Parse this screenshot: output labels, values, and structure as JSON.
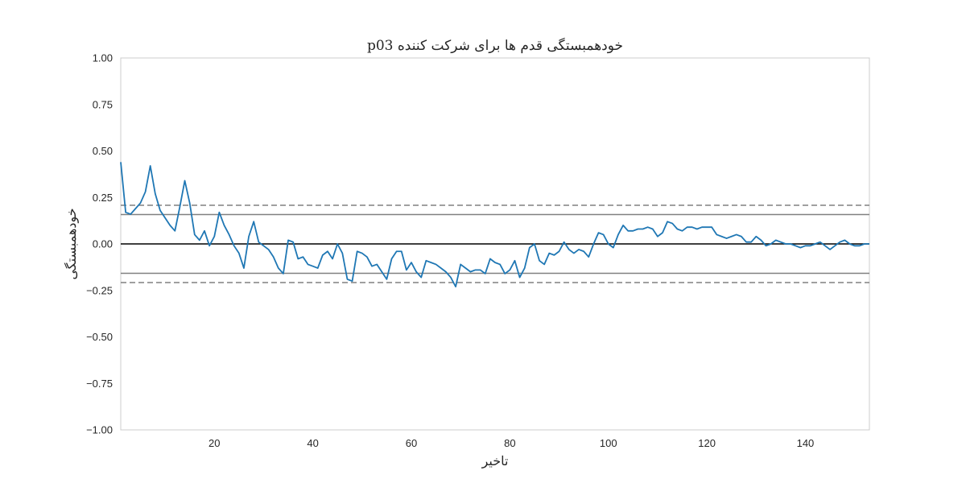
{
  "chart_data": {
    "type": "line",
    "title": "خودهمبستگی قدم ها برای شرکت کننده p03",
    "xlabel": "تاخیر",
    "ylabel": "خودهمبستگی",
    "xlim": [
      1,
      153
    ],
    "ylim": [
      -1.0,
      1.0
    ],
    "x_ticks": [
      20,
      40,
      60,
      80,
      100,
      120,
      140
    ],
    "y_ticks": [
      -1.0,
      -0.75,
      -0.5,
      -0.25,
      0.0,
      0.25,
      0.5,
      0.75,
      1.0
    ],
    "y_tick_labels": [
      "−1.00",
      "−0.75",
      "−0.50",
      "−0.25",
      "0.00",
      "0.25",
      "0.50",
      "0.75",
      "1.00"
    ],
    "x_tick_labels": [
      "20",
      "40",
      "60",
      "80",
      "100",
      "120",
      "140"
    ],
    "grid": false,
    "confidence_bands": {
      "solid": [
        0.158,
        -0.158
      ],
      "dashed": [
        0.208,
        -0.208
      ]
    },
    "zero_line": 0.0,
    "colors": {
      "series": "#1f77b4",
      "band_line": "#808080",
      "zero_line": "#000000",
      "frame": "#cccccc"
    },
    "series": [
      {
        "x": [
          1,
          2,
          3,
          4,
          5,
          6,
          7,
          8,
          9,
          10,
          11,
          12,
          13,
          14,
          15,
          16,
          17,
          18,
          19,
          20,
          21,
          22,
          23,
          24,
          25,
          26,
          27,
          28,
          29,
          30,
          31,
          32,
          33,
          34,
          35,
          36,
          37,
          38,
          39,
          40,
          41,
          42,
          43,
          44,
          45,
          46,
          47,
          48,
          49,
          50,
          51,
          52,
          53,
          54,
          55,
          56,
          57,
          58,
          59,
          60,
          61,
          62,
          63,
          64,
          65,
          66,
          67,
          68,
          69,
          70,
          71,
          72,
          73,
          74,
          75,
          76,
          77,
          78,
          79,
          80,
          81,
          82,
          83,
          84,
          85,
          86,
          87,
          88,
          89,
          90,
          91,
          92,
          93,
          94,
          95,
          96,
          97,
          98,
          99,
          100,
          101,
          102,
          103,
          104,
          105,
          106,
          107,
          108,
          109,
          110,
          111,
          112,
          113,
          114,
          115,
          116,
          117,
          118,
          119,
          120,
          121,
          122,
          123,
          124,
          125,
          126,
          127,
          128,
          129,
          130,
          131,
          132,
          133,
          134,
          135,
          136,
          137,
          138,
          139,
          140,
          141,
          142,
          143,
          144,
          145,
          146,
          147,
          148,
          149,
          150,
          151,
          152,
          153
        ],
        "values": [
          0.44,
          0.17,
          0.16,
          0.19,
          0.22,
          0.28,
          0.42,
          0.27,
          0.18,
          0.14,
          0.1,
          0.07,
          0.2,
          0.34,
          0.22,
          0.05,
          0.02,
          0.07,
          -0.01,
          0.04,
          0.17,
          0.1,
          0.05,
          -0.01,
          -0.05,
          -0.13,
          0.04,
          0.12,
          0.01,
          -0.01,
          -0.03,
          -0.07,
          -0.13,
          -0.16,
          0.02,
          0.01,
          -0.08,
          -0.07,
          -0.11,
          -0.12,
          -0.13,
          -0.06,
          -0.04,
          -0.08,
          0.0,
          -0.05,
          -0.19,
          -0.2,
          -0.04,
          -0.05,
          -0.07,
          -0.12,
          -0.11,
          -0.15,
          -0.19,
          -0.08,
          -0.04,
          -0.04,
          -0.14,
          -0.1,
          -0.15,
          -0.18,
          -0.09,
          -0.1,
          -0.11,
          -0.13,
          -0.15,
          -0.18,
          -0.23,
          -0.11,
          -0.13,
          -0.15,
          -0.14,
          -0.14,
          -0.16,
          -0.08,
          -0.1,
          -0.11,
          -0.16,
          -0.14,
          -0.09,
          -0.18,
          -0.13,
          -0.02,
          0.0,
          -0.09,
          -0.11,
          -0.05,
          -0.06,
          -0.04,
          0.01,
          -0.03,
          -0.05,
          -0.03,
          -0.04,
          -0.07,
          0.0,
          0.06,
          0.05,
          0.0,
          -0.02,
          0.05,
          0.1,
          0.07,
          0.07,
          0.08,
          0.08,
          0.09,
          0.08,
          0.04,
          0.06,
          0.12,
          0.11,
          0.08,
          0.07,
          0.09,
          0.09,
          0.08,
          0.09,
          0.09,
          0.09,
          0.05,
          0.04,
          0.03,
          0.04,
          0.05,
          0.04,
          0.01,
          0.01,
          0.04,
          0.02,
          -0.01,
          0.0,
          0.02,
          0.01,
          0.0,
          0.0,
          -0.01,
          -0.02,
          -0.01,
          -0.01,
          0.0,
          0.01,
          -0.01,
          -0.03,
          -0.01,
          0.01,
          0.02,
          0.0,
          -0.01,
          -0.01,
          0.0,
          0.0
        ]
      }
    ]
  }
}
